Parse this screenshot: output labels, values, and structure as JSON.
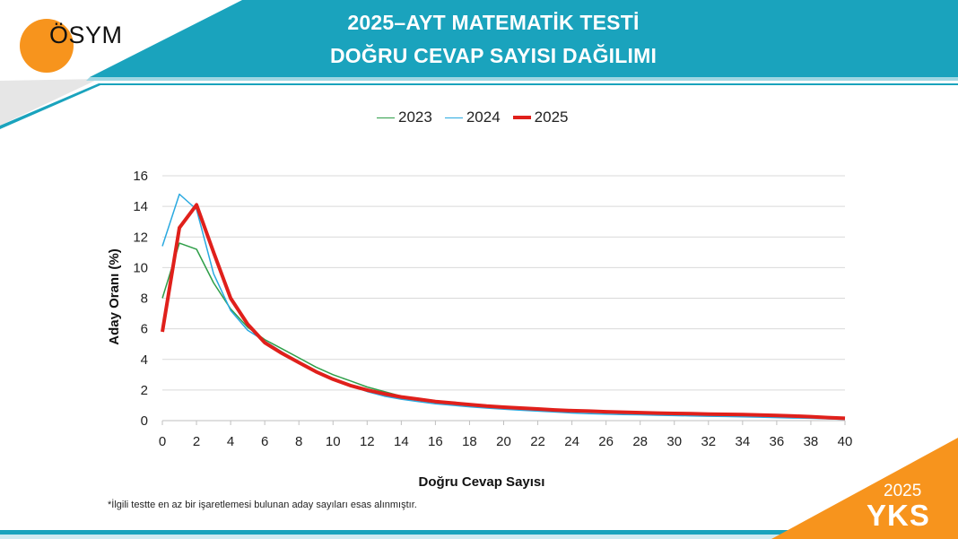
{
  "header": {
    "logo_text": "ÖSYM",
    "title_line1": "2025–AYT MATEMATİK TESTİ",
    "title_line2": "DOĞRU CEVAP SAYISI DAĞILIMI"
  },
  "footnote": "*İlgili testte en az bir işaretlemesi bulunan aday sayıları esas alınmıştır.",
  "badge": {
    "year": "2025",
    "name": "YKS"
  },
  "colors": {
    "header_band": "#1aa3bd",
    "accent_orange": "#f7941d"
  },
  "chart_data": {
    "type": "line",
    "title": "",
    "xlabel": "Doğru Cevap Sayısı",
    "ylabel": "Aday Oranı (%)",
    "xlim": [
      0,
      40
    ],
    "ylim": [
      0,
      16
    ],
    "xticks": [
      0,
      2,
      4,
      6,
      8,
      10,
      12,
      14,
      16,
      18,
      20,
      22,
      24,
      26,
      28,
      30,
      32,
      34,
      36,
      38,
      40
    ],
    "yticks": [
      0,
      2,
      4,
      6,
      8,
      10,
      12,
      14,
      16
    ],
    "grid": true,
    "legend": "top",
    "x": [
      0,
      1,
      2,
      3,
      4,
      5,
      6,
      7,
      8,
      9,
      10,
      11,
      12,
      13,
      14,
      15,
      16,
      17,
      18,
      19,
      20,
      21,
      22,
      23,
      24,
      25,
      26,
      27,
      28,
      29,
      30,
      31,
      32,
      33,
      34,
      35,
      36,
      37,
      38,
      39,
      40
    ],
    "series": [
      {
        "name": "2023",
        "color": "#2e9e48",
        "width": 1.5,
        "values": [
          8.0,
          11.6,
          11.2,
          9.0,
          7.3,
          6.1,
          5.3,
          4.7,
          4.1,
          3.5,
          3.0,
          2.6,
          2.2,
          1.9,
          1.6,
          1.45,
          1.3,
          1.2,
          1.1,
          1.0,
          0.9,
          0.85,
          0.8,
          0.72,
          0.65,
          0.6,
          0.58,
          0.55,
          0.52,
          0.5,
          0.48,
          0.46,
          0.44,
          0.42,
          0.4,
          0.38,
          0.36,
          0.33,
          0.3,
          0.22,
          0.15
        ]
      },
      {
        "name": "2024",
        "color": "#29a9e0",
        "width": 1.5,
        "values": [
          11.4,
          14.8,
          13.8,
          9.6,
          7.2,
          5.9,
          5.2,
          4.5,
          3.8,
          3.2,
          2.7,
          2.3,
          1.9,
          1.6,
          1.4,
          1.25,
          1.1,
          1.0,
          0.9,
          0.82,
          0.75,
          0.68,
          0.62,
          0.56,
          0.5,
          0.46,
          0.43,
          0.4,
          0.38,
          0.35,
          0.33,
          0.31,
          0.29,
          0.27,
          0.25,
          0.23,
          0.2,
          0.17,
          0.15,
          0.12,
          0.08
        ]
      },
      {
        "name": "2025",
        "color": "#e0201b",
        "width": 4,
        "values": [
          5.8,
          12.6,
          14.1,
          11.0,
          8.0,
          6.3,
          5.1,
          4.4,
          3.8,
          3.2,
          2.7,
          2.3,
          2.0,
          1.75,
          1.55,
          1.4,
          1.25,
          1.15,
          1.05,
          0.95,
          0.88,
          0.82,
          0.76,
          0.7,
          0.65,
          0.62,
          0.58,
          0.55,
          0.52,
          0.49,
          0.47,
          0.45,
          0.43,
          0.41,
          0.39,
          0.37,
          0.34,
          0.3,
          0.26,
          0.2,
          0.15
        ]
      }
    ]
  }
}
